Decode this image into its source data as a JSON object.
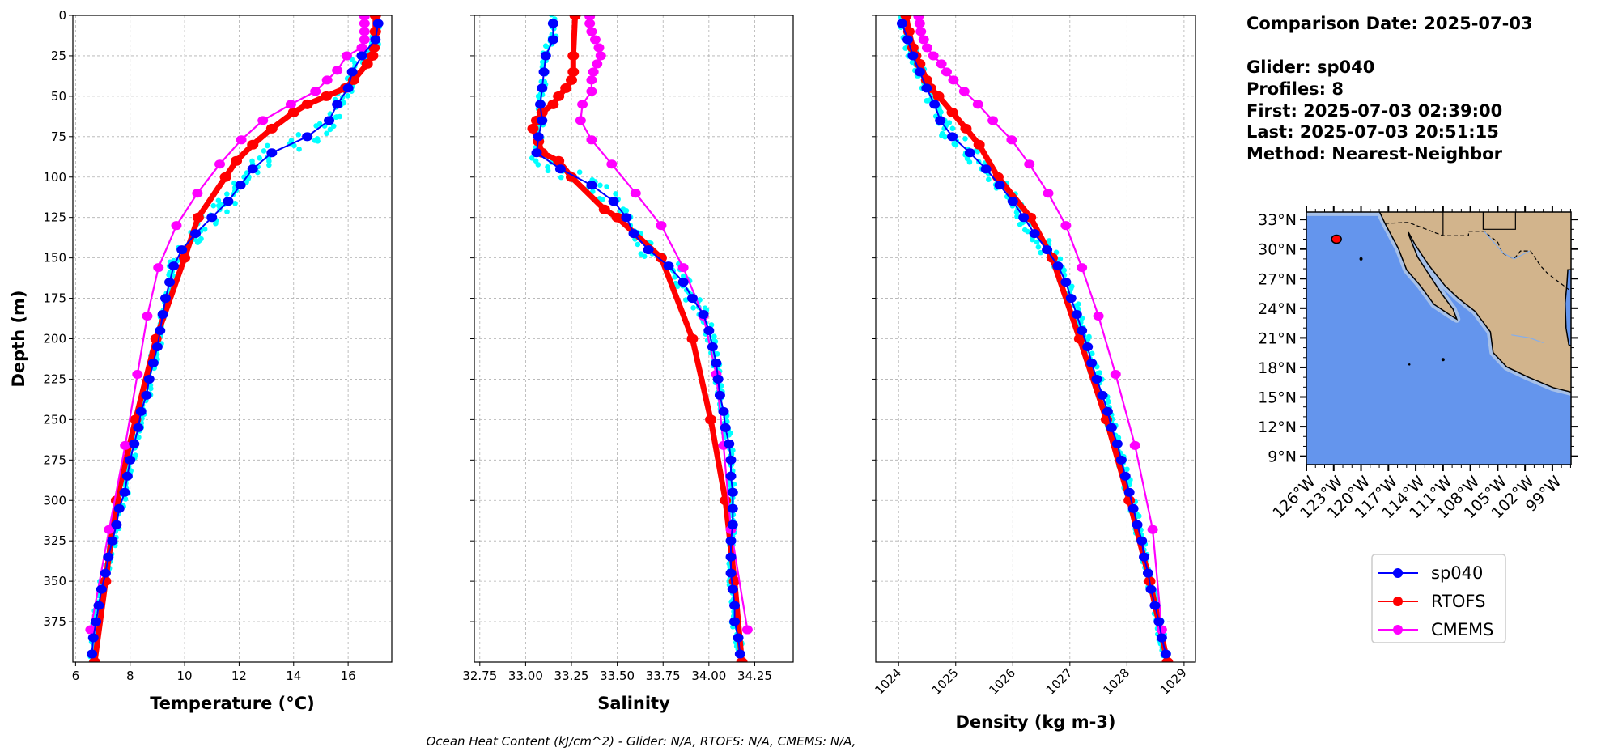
{
  "info": {
    "comparison_date": "Comparison Date: 2025-07-03",
    "glider": "Glider: sp040",
    "profiles": "Profiles: 8",
    "first": "First: 2025-07-03 02:39:00",
    "last": "Last: 2025-07-03 20:51:15",
    "method": "Method: Nearest-Neighbor"
  },
  "footnote": "Ocean Heat Content (kJ/cm^2) - Glider: N/A,  RTOFS: N/A,  CMEMS: N/A,",
  "colors": {
    "glider": "#0000ff",
    "rtofs": "#ff0000",
    "cmems": "#ff00ff",
    "profiles": "#00ffff",
    "ocean": "#6495ed",
    "shelf": "#a6c0e8",
    "land": "#d2b48c"
  },
  "legend": [
    {
      "name": "sp040",
      "color": "#0000ff"
    },
    {
      "name": "RTOFS",
      "color": "#ff0000"
    },
    {
      "name": "CMEMS",
      "color": "#ff00ff"
    }
  ],
  "chart_data": [
    {
      "type": "line",
      "xlabel": "Temperature (°C)",
      "ylabel": "Depth (m)",
      "xlim": [
        5.9,
        17.6
      ],
      "ylim": [
        400,
        0
      ],
      "xticks": [
        "6",
        "8",
        "10",
        "12",
        "14",
        "16"
      ],
      "yticks": [
        "0",
        "25",
        "50",
        "75",
        "100",
        "125",
        "150",
        "175",
        "200",
        "225",
        "250",
        "275",
        "300",
        "325",
        "350",
        "375"
      ],
      "grid": true,
      "series": [
        {
          "name": "sp040",
          "depth": [
            5,
            15,
            25,
            35,
            45,
            55,
            65,
            75,
            85,
            95,
            105,
            115,
            125,
            135,
            145,
            155,
            165,
            175,
            185,
            195,
            205,
            215,
            225,
            235,
            245,
            255,
            265,
            275,
            285,
            295,
            305,
            315,
            325,
            335,
            345,
            355,
            365,
            375,
            385,
            395
          ],
          "values": [
            17.1,
            17.0,
            16.5,
            16.15,
            16.0,
            15.6,
            15.3,
            14.5,
            13.2,
            12.5,
            12.05,
            11.6,
            11.0,
            10.4,
            9.9,
            9.6,
            9.45,
            9.3,
            9.2,
            9.1,
            9.0,
            8.85,
            8.7,
            8.6,
            8.4,
            8.3,
            8.15,
            8.0,
            7.9,
            7.8,
            7.6,
            7.5,
            7.35,
            7.2,
            7.1,
            6.95,
            6.85,
            6.75,
            6.65,
            6.6
          ]
        },
        {
          "name": "RTOFS",
          "depth": [
            0,
            10,
            20,
            25,
            30,
            40,
            45,
            50,
            55,
            60,
            70,
            80,
            90,
            100,
            125,
            150,
            200,
            250,
            300,
            350,
            400
          ],
          "values": [
            17.0,
            17.0,
            16.95,
            16.9,
            16.7,
            16.2,
            15.9,
            15.2,
            14.5,
            14.0,
            13.2,
            12.5,
            11.9,
            11.5,
            10.5,
            10.0,
            8.95,
            8.2,
            7.5,
            7.1,
            6.7
          ]
        },
        {
          "name": "CMEMS",
          "depth": [
            0.5,
            5,
            10,
            15,
            20,
            25,
            34,
            40,
            47,
            55,
            65,
            77,
            92,
            110,
            130,
            156,
            186,
            222,
            266,
            318,
            380
          ],
          "values": [
            16.6,
            16.6,
            16.6,
            16.6,
            16.5,
            15.95,
            15.6,
            15.23,
            14.8,
            13.9,
            12.87,
            12.08,
            11.29,
            10.47,
            9.7,
            9.04,
            8.63,
            8.27,
            7.82,
            7.23,
            6.55
          ]
        }
      ]
    },
    {
      "type": "line",
      "xlabel": "Salinity",
      "ylabel": "",
      "xlim": [
        32.72,
        34.46
      ],
      "ylim": [
        400,
        0
      ],
      "xticks": [
        "32.75",
        "33.00",
        "33.25",
        "33.50",
        "33.75",
        "34.00",
        "34.25"
      ],
      "grid": true,
      "series": [
        {
          "name": "sp040",
          "depth": [
            5,
            15,
            25,
            35,
            45,
            55,
            65,
            75,
            85,
            95,
            105,
            115,
            125,
            135,
            145,
            155,
            165,
            175,
            185,
            195,
            205,
            215,
            225,
            235,
            245,
            255,
            265,
            275,
            285,
            295,
            305,
            315,
            325,
            335,
            345,
            355,
            365,
            375,
            385,
            395
          ],
          "values": [
            33.15,
            33.15,
            33.11,
            33.1,
            33.09,
            33.08,
            33.09,
            33.07,
            33.06,
            33.19,
            33.36,
            33.48,
            33.55,
            33.59,
            33.67,
            33.78,
            33.86,
            33.91,
            33.97,
            34.0,
            34.02,
            34.04,
            34.05,
            34.06,
            34.08,
            34.09,
            34.11,
            34.12,
            34.12,
            34.13,
            34.13,
            34.13,
            34.12,
            34.12,
            34.12,
            34.13,
            34.14,
            34.14,
            34.16,
            34.17
          ]
        },
        {
          "name": "RTOFS",
          "depth": [
            0,
            25,
            35,
            40,
            45,
            50,
            55,
            60,
            65,
            70,
            78,
            85,
            90,
            100,
            120,
            125,
            150,
            200,
            250,
            300,
            350,
            400
          ],
          "values": [
            33.27,
            33.26,
            33.26,
            33.25,
            33.22,
            33.18,
            33.15,
            33.09,
            33.06,
            33.04,
            33.07,
            33.09,
            33.18,
            33.25,
            33.43,
            33.5,
            33.74,
            33.91,
            34.01,
            34.09,
            34.14,
            34.18
          ]
        },
        {
          "name": "CMEMS",
          "depth": [
            0.5,
            5,
            10,
            15,
            20,
            25,
            30,
            35,
            40,
            47,
            55,
            65,
            77,
            92,
            110,
            130,
            156,
            186,
            222,
            266,
            318,
            380
          ],
          "values": [
            33.35,
            33.35,
            33.36,
            33.38,
            33.4,
            33.41,
            33.39,
            33.37,
            33.36,
            33.36,
            33.31,
            33.3,
            33.36,
            33.47,
            33.6,
            33.74,
            33.86,
            33.97,
            34.04,
            34.08,
            34.12,
            34.21
          ]
        }
      ]
    },
    {
      "type": "line",
      "xlabel": "Density (kg m-3)",
      "ylabel": "",
      "xlim": [
        1023.6,
        1029.2
      ],
      "ylim": [
        400,
        0
      ],
      "xticks": [
        "1024",
        "1025",
        "1026",
        "1027",
        "1028",
        "1029"
      ],
      "grid": true,
      "series": [
        {
          "name": "sp040",
          "depth": [
            5,
            15,
            25,
            35,
            45,
            55,
            65,
            75,
            85,
            95,
            105,
            115,
            125,
            135,
            145,
            155,
            165,
            175,
            185,
            195,
            205,
            215,
            225,
            235,
            245,
            255,
            265,
            275,
            285,
            295,
            305,
            315,
            325,
            335,
            345,
            355,
            365,
            375,
            385,
            395
          ],
          "values": [
            1024.06,
            1024.16,
            1024.25,
            1024.37,
            1024.49,
            1024.63,
            1024.73,
            1024.94,
            1025.25,
            1025.53,
            1025.77,
            1026.0,
            1026.19,
            1026.38,
            1026.6,
            1026.79,
            1026.93,
            1027.02,
            1027.12,
            1027.21,
            1027.31,
            1027.38,
            1027.47,
            1027.57,
            1027.66,
            1027.73,
            1027.83,
            1027.9,
            1027.97,
            1028.04,
            1028.11,
            1028.18,
            1028.26,
            1028.3,
            1028.37,
            1028.42,
            1028.49,
            1028.56,
            1028.61,
            1028.68
          ]
        },
        {
          "name": "RTOFS",
          "depth": [
            0,
            10,
            20,
            25,
            30,
            40,
            45,
            50,
            60,
            70,
            80,
            100,
            125,
            150,
            200,
            250,
            300,
            350,
            400
          ],
          "values": [
            1024.13,
            1024.18,
            1024.25,
            1024.3,
            1024.37,
            1024.49,
            1024.56,
            1024.7,
            1024.94,
            1025.18,
            1025.41,
            1025.74,
            1026.31,
            1026.69,
            1027.17,
            1027.64,
            1028.04,
            1028.4,
            1028.71
          ]
        },
        {
          "name": "CMEMS",
          "depth": [
            0.5,
            5,
            10,
            15,
            20,
            25,
            30,
            35,
            40,
            47,
            55,
            65,
            77,
            92,
            110,
            130,
            156,
            186,
            222,
            266,
            318,
            380
          ],
          "values": [
            1024.35,
            1024.37,
            1024.39,
            1024.44,
            1024.5,
            1024.61,
            1024.75,
            1024.84,
            1024.96,
            1025.15,
            1025.39,
            1025.65,
            1025.98,
            1026.29,
            1026.62,
            1026.93,
            1027.21,
            1027.5,
            1027.8,
            1028.14,
            1028.45,
            1028.61
          ]
        }
      ]
    }
  ],
  "map": {
    "lon_range": [
      -126,
      -96.95
    ],
    "lat_range": [
      8.15,
      33.75
    ],
    "lat_ticks": [
      {
        "value": 33,
        "label": "33°N"
      },
      {
        "value": 30,
        "label": "30°N"
      },
      {
        "value": 27,
        "label": "27°N"
      },
      {
        "value": 24,
        "label": "24°N"
      },
      {
        "value": 21,
        "label": "21°N"
      },
      {
        "value": 18,
        "label": "18°N"
      },
      {
        "value": 15,
        "label": "15°N"
      },
      {
        "value": 12,
        "label": "12°N"
      },
      {
        "value": 9,
        "label": "9°N"
      }
    ],
    "lon_ticks": [
      {
        "value": -126,
        "label": "126°W"
      },
      {
        "value": -123,
        "label": "123°W"
      },
      {
        "value": -120,
        "label": "120°W"
      },
      {
        "value": -117,
        "label": "117°W"
      },
      {
        "value": -114,
        "label": "114°W"
      },
      {
        "value": -111,
        "label": "111°W"
      },
      {
        "value": -108,
        "label": "108°W"
      },
      {
        "value": -105,
        "label": "105°W"
      },
      {
        "value": -102,
        "label": "102°W"
      },
      {
        "value": -99,
        "label": "99°W"
      }
    ],
    "glider_position": {
      "lon": -122.7,
      "lat": 31.0
    }
  }
}
